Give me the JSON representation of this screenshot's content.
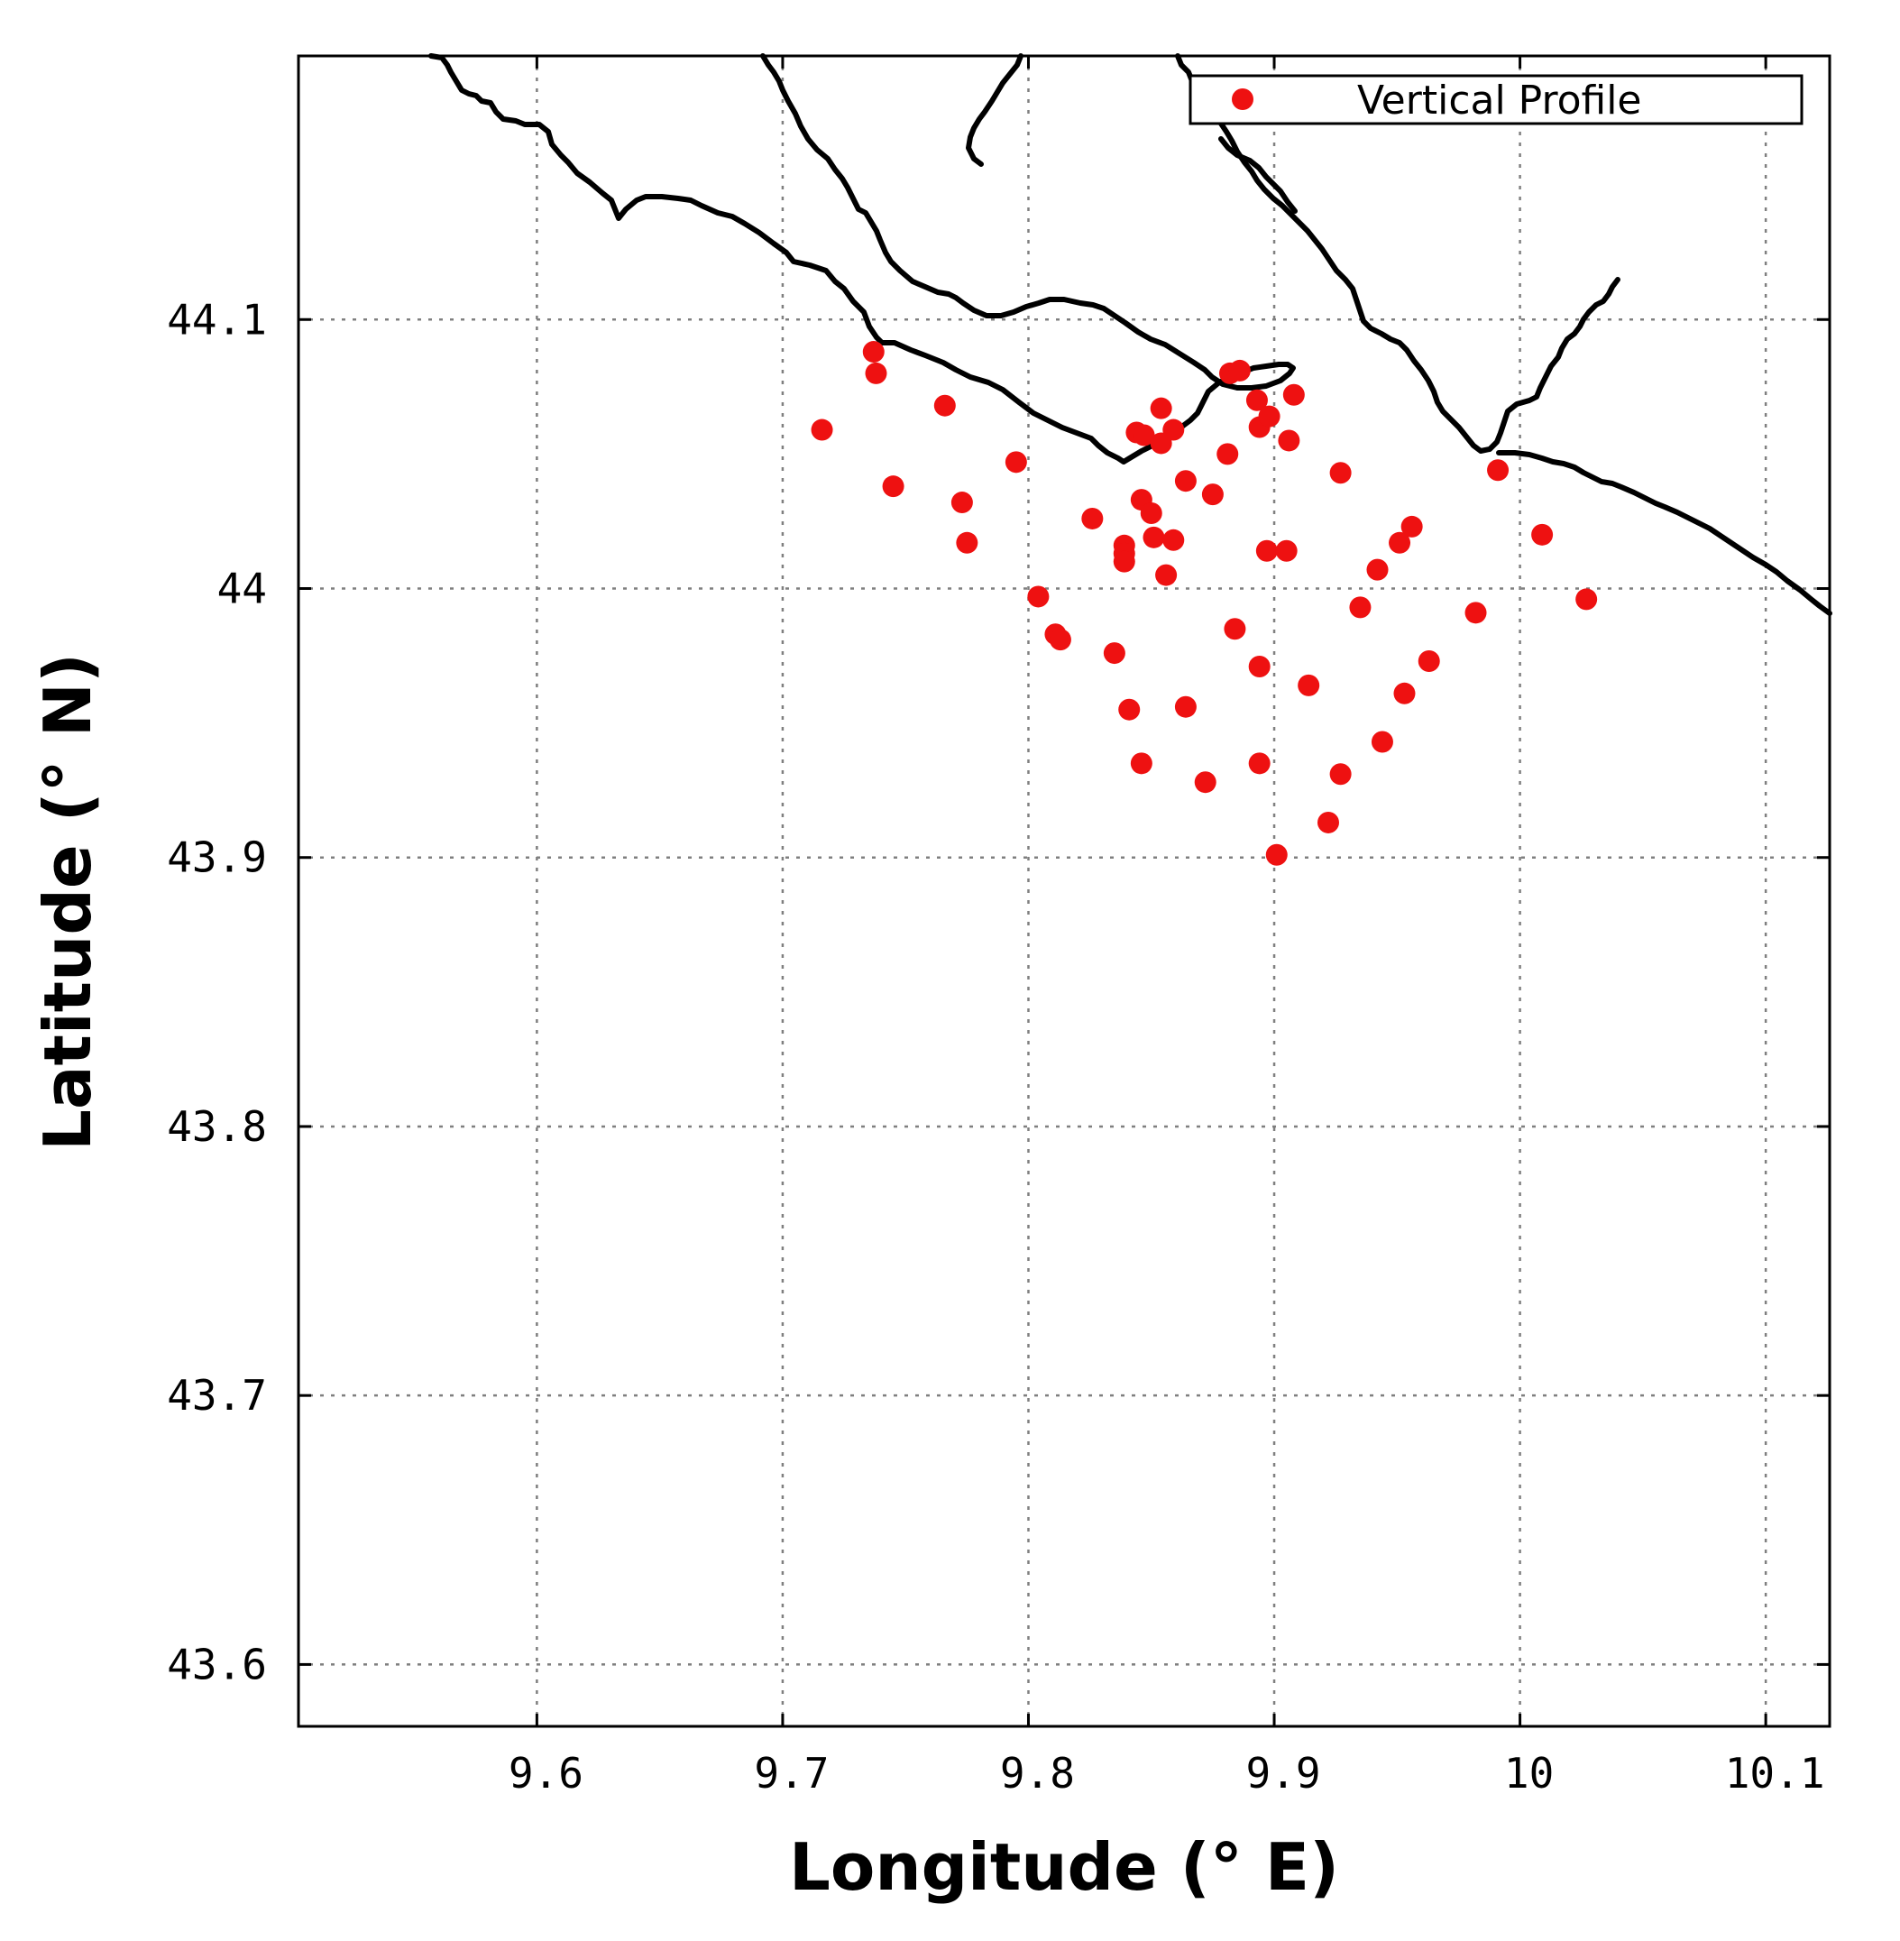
{
  "chart_data": {
    "type": "scatter",
    "title": "",
    "xlabel": "Longitude (° E)",
    "ylabel": "Latitude (° N)",
    "xlim": [
      9.503,
      10.126
    ],
    "ylim": [
      43.577,
      44.198
    ],
    "xticks": [
      9.6,
      9.7,
      9.8,
      9.9,
      10.0,
      10.1
    ],
    "xtick_labels": [
      "9.6",
      "9.7",
      "9.8",
      "9.9",
      "10",
      "10.1"
    ],
    "yticks": [
      43.6,
      43.7,
      43.8,
      43.9,
      44.0,
      44.1
    ],
    "ytick_labels": [
      "43.6",
      "43.7",
      "43.8",
      "43.9",
      "44",
      "44.1"
    ],
    "grid": true,
    "legend": {
      "position": "top-right",
      "entries": [
        "Vertical Profile"
      ]
    },
    "colors": {
      "marker": "#ee1111",
      "coast": "#000000",
      "grid": "#7f7f7f"
    },
    "series": [
      {
        "name": "Vertical Profile",
        "marker": "filled-circle",
        "color": "#ee1111",
        "points": [
          [
            9.737,
            44.088
          ],
          [
            9.738,
            44.08
          ],
          [
            9.716,
            44.059
          ],
          [
            9.766,
            44.068
          ],
          [
            9.795,
            44.047
          ],
          [
            9.745,
            44.038
          ],
          [
            9.773,
            44.032
          ],
          [
            9.775,
            44.017
          ],
          [
            9.826,
            44.026
          ],
          [
            9.839,
            44.016
          ],
          [
            9.839,
            44.013
          ],
          [
            9.839,
            44.01
          ],
          [
            9.804,
            43.997
          ],
          [
            9.811,
            43.983
          ],
          [
            9.813,
            43.981
          ],
          [
            9.835,
            43.976
          ],
          [
            9.841,
            43.955
          ],
          [
            9.846,
            43.935
          ],
          [
            9.844,
            44.058
          ],
          [
            9.847,
            44.057
          ],
          [
            9.854,
            44.067
          ],
          [
            9.854,
            44.054
          ],
          [
            9.859,
            44.059
          ],
          [
            9.846,
            44.033
          ],
          [
            9.85,
            44.028
          ],
          [
            9.851,
            44.019
          ],
          [
            9.859,
            44.018
          ],
          [
            9.856,
            44.005
          ],
          [
            9.864,
            44.04
          ],
          [
            9.875,
            44.035
          ],
          [
            9.881,
            44.05
          ],
          [
            9.882,
            44.08
          ],
          [
            9.886,
            44.081
          ],
          [
            9.884,
            43.985
          ],
          [
            9.893,
            44.07
          ],
          [
            9.894,
            44.06
          ],
          [
            9.898,
            44.064
          ],
          [
            9.906,
            44.055
          ],
          [
            9.908,
            44.072
          ],
          [
            9.897,
            44.014
          ],
          [
            9.905,
            44.014
          ],
          [
            9.894,
            43.971
          ],
          [
            9.864,
            43.956
          ],
          [
            9.872,
            43.928
          ],
          [
            9.894,
            43.935
          ],
          [
            9.901,
            43.901
          ],
          [
            9.914,
            43.964
          ],
          [
            9.927,
            44.043
          ],
          [
            9.935,
            43.993
          ],
          [
            9.942,
            44.007
          ],
          [
            9.944,
            43.943
          ],
          [
            9.953,
            43.961
          ],
          [
            9.951,
            44.017
          ],
          [
            9.956,
            44.023
          ],
          [
            9.963,
            43.973
          ],
          [
            9.982,
            43.991
          ],
          [
            9.927,
            43.931
          ],
          [
            9.922,
            43.913
          ],
          [
            9.991,
            44.044
          ],
          [
            10.009,
            44.02
          ],
          [
            10.027,
            43.996
          ]
        ]
      }
    ]
  }
}
